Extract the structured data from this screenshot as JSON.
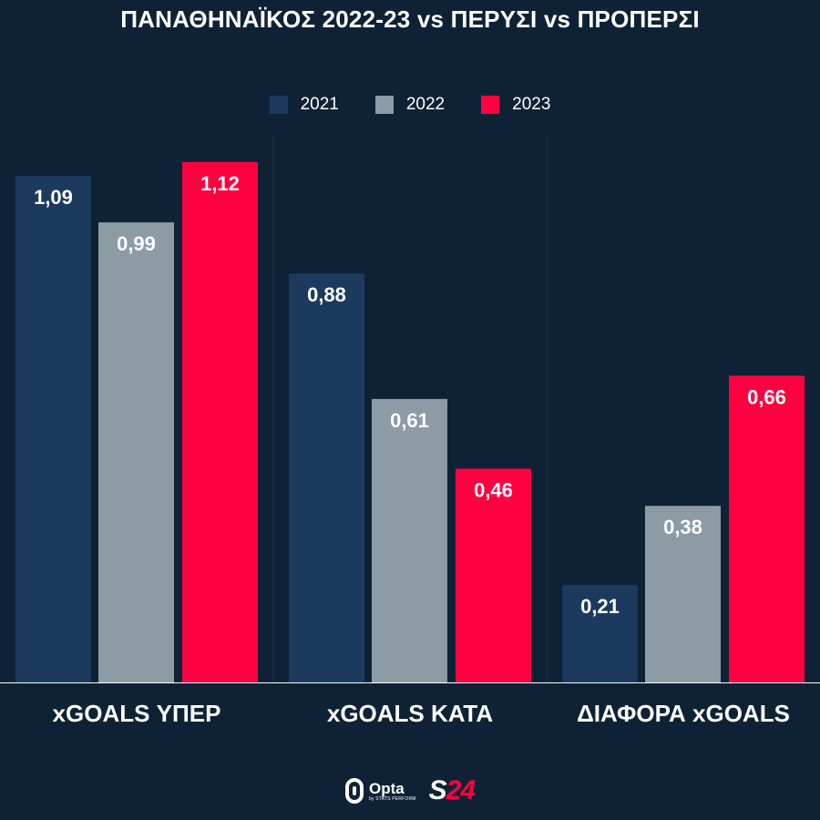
{
  "title": "ΠΑΝΑΘΗΝΑΪΚΟΣ 2022-23 vs ΠΕΡΥΣΙ vs ΠΡΟΠΕΡΣΙ",
  "chart_data": {
    "type": "bar",
    "title": "ΠΑΝΑΘΗΝΑΪΚΟΣ 2022-23 vs ΠΕΡΥΣΙ vs ΠΡΟΠΕΡΣΙ",
    "categories": [
      "xGOALS ΥΠΕΡ",
      "xGOALS ΚΑΤΑ",
      "ΔΙΑΦΟΡΑ xGOALS"
    ],
    "series": [
      {
        "name": "2021",
        "values": [
          1.09,
          0.88,
          0.21
        ],
        "labels": [
          "1,09",
          "0,88",
          "0,21"
        ],
        "color": "#1c3a5e"
      },
      {
        "name": "2022",
        "values": [
          0.99,
          0.61,
          0.38
        ],
        "labels": [
          "0,99",
          "0,61",
          "0,38"
        ],
        "color": "#8c9ba4"
      },
      {
        "name": "2023",
        "values": [
          1.12,
          0.46,
          0.66
        ],
        "labels": [
          "1,12",
          "0,46",
          "0,66"
        ],
        "color": "#ff0040"
      }
    ],
    "ylim": [
      0,
      1.2
    ],
    "xlabel": "",
    "ylabel": "",
    "grid": false,
    "legend_position": "top-center"
  },
  "footer": {
    "opta_name": "Opta",
    "opta_sub": "by STATS PERFORM",
    "s24_s": "S",
    "s24_num": "24"
  },
  "colors": {
    "background": "#0f2235",
    "separator": "#1e3448"
  }
}
